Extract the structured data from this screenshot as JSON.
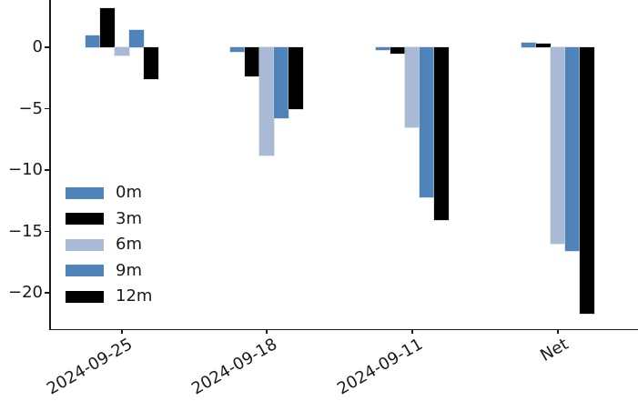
{
  "chart_data": {
    "type": "bar",
    "title": "",
    "xlabel": "",
    "ylabel": "",
    "grid": false,
    "categories": [
      "2024-09-25",
      "2024-09-18",
      "2024-09-11",
      "Net"
    ],
    "series": [
      {
        "name": "0m",
        "color": "#4e84ba",
        "values": [
          1.0,
          -0.4,
          -0.2,
          0.4
        ]
      },
      {
        "name": "3m",
        "color": "#000000",
        "values": [
          3.2,
          -2.4,
          -0.5,
          0.3
        ]
      },
      {
        "name": "6m",
        "color": "#a8bad6",
        "values": [
          -0.7,
          -8.8,
          -6.5,
          -16.0
        ]
      },
      {
        "name": "9m",
        "color": "#4e84ba",
        "values": [
          1.4,
          -5.8,
          -12.2,
          -16.6
        ]
      },
      {
        "name": "12m",
        "color": "#000000",
        "values": [
          -2.6,
          -5.0,
          -14.1,
          -21.7
        ]
      }
    ],
    "yticks": [
      {
        "label": "0",
        "value": 0
      },
      {
        "label": "−5",
        "value": -5
      },
      {
        "label": "−10",
        "value": -10
      },
      {
        "label": "−15",
        "value": -15
      },
      {
        "label": "−20",
        "value": -20
      }
    ],
    "ylim": [
      -23.0,
      3.9
    ],
    "legend": {
      "position": "lower left",
      "entries": [
        "0m",
        "3m",
        "6m",
        "9m",
        "12m"
      ]
    },
    "colors": {
      "steel_blue": "#4e84ba",
      "light_blue": "#a8bad6",
      "black": "#000000"
    }
  }
}
